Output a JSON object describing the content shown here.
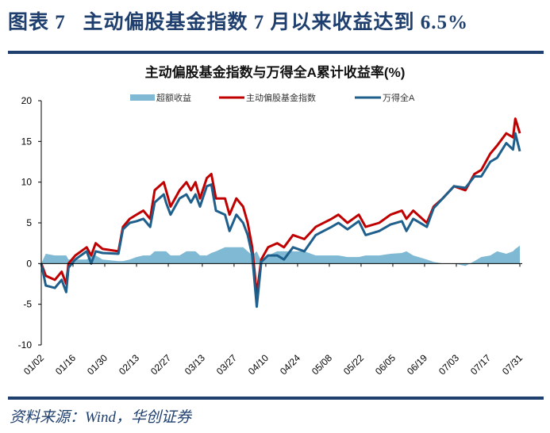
{
  "figure_title": "图表 7   主动偏股基金指数 7 月以来收益达到 6.5%",
  "source": "资料来源：Wind，华创证券",
  "colors": {
    "header": "#1f3f6e",
    "excess": "#7fb9d3",
    "fund": "#c00000",
    "wind_a": "#1f5f8b"
  },
  "chart_data": {
    "type": "line",
    "title": "主动偏股基金指数与万得全A累计收益率(%)",
    "ylim": [
      -10,
      20
    ],
    "yticks": [
      "-10",
      "-5",
      "0",
      "5",
      "10",
      "15",
      "20"
    ],
    "xtick_labels": [
      "01/02",
      "01/16",
      "01/30",
      "02/13",
      "02/27",
      "03/13",
      "03/27",
      "04/10",
      "04/24",
      "05/08",
      "05/22",
      "06/05",
      "06/19",
      "07/03",
      "07/17",
      "07/31"
    ],
    "grid": false,
    "legend": "top",
    "x": [
      "01/02",
      "01/04",
      "01/08",
      "01/11",
      "01/13",
      "01/14",
      "01/17",
      "01/22",
      "01/24",
      "01/26",
      "01/29",
      "02/05",
      "02/07",
      "02/10",
      "02/13",
      "02/16",
      "02/19",
      "02/21",
      "02/25",
      "02/26",
      "02/28",
      "03/03",
      "03/06",
      "03/08",
      "03/10",
      "03/12",
      "03/15",
      "03/17",
      "03/19",
      "03/23",
      "03/25",
      "03/28",
      "03/31",
      "04/02",
      "04/04",
      "04/06",
      "04/08",
      "04/11",
      "04/15",
      "04/18",
      "04/22",
      "04/27",
      "05/02",
      "05/09",
      "05/12",
      "05/16",
      "05/21",
      "05/24",
      "05/30",
      "06/04",
      "06/09",
      "06/11",
      "06/14",
      "06/20",
      "06/23",
      "06/27",
      "07/02",
      "07/07",
      "07/11",
      "07/14",
      "07/18",
      "07/21",
      "07/25",
      "07/28",
      "07/29",
      "07/31"
    ],
    "series": [
      {
        "name": "超额收益",
        "kind": "area",
        "values": [
          0,
          1.2,
          1,
          1,
          1,
          0.5,
          0.5,
          0.5,
          1,
          1,
          0.5,
          0.3,
          0.3,
          0.5,
          0.8,
          1,
          1,
          1.5,
          1.5,
          1.5,
          1,
          1,
          1.5,
          1.5,
          1.5,
          1,
          1,
          1.3,
          1.5,
          2,
          2,
          2,
          2,
          1.5,
          1,
          1.5,
          0.3,
          1,
          1.5,
          1.5,
          1.5,
          1.5,
          1,
          1,
          1,
          0.8,
          0.8,
          1,
          1,
          1.2,
          1.3,
          1.5,
          1,
          0.5,
          0.2,
          0,
          0,
          -0.3,
          0.3,
          0.8,
          1,
          1.5,
          1.2,
          1.5,
          1.8,
          2.2
        ]
      },
      {
        "name": "主动偏股基金指数",
        "kind": "line",
        "values": [
          0,
          -1.5,
          -2,
          -1,
          -2.5,
          0,
          1,
          2,
          1,
          2.5,
          1.8,
          1.5,
          4.5,
          5.5,
          6,
          6.5,
          5.5,
          9,
          10,
          9,
          7,
          9,
          10,
          9,
          10,
          8,
          10.5,
          11,
          8,
          8,
          6,
          8,
          7,
          5,
          2,
          -3.8,
          0.5,
          2,
          2.5,
          2,
          3.5,
          3,
          4.5,
          5.5,
          6,
          5,
          6,
          4.5,
          5,
          6,
          6.5,
          5.5,
          6.5,
          5,
          7,
          8,
          9.5,
          9,
          11,
          11.5,
          13.5,
          14.5,
          16,
          15.5,
          17.8,
          16
        ]
      },
      {
        "name": "万得全A",
        "kind": "line",
        "values": [
          0,
          -2.7,
          -3,
          -2,
          -3.5,
          -0.5,
          0.5,
          1.5,
          0,
          1.5,
          1.3,
          1.2,
          4.2,
          5,
          5.2,
          5.5,
          4.5,
          7.5,
          8.5,
          7.5,
          6,
          8,
          8.5,
          7.5,
          8.5,
          7,
          9.5,
          9.7,
          6.5,
          6,
          4,
          6,
          5,
          3.5,
          1,
          -5.3,
          0.2,
          1,
          1,
          0.5,
          2,
          1.5,
          3.5,
          4.5,
          5,
          4.2,
          5.2,
          3.5,
          4,
          4.8,
          5.2,
          4,
          5.5,
          4.5,
          6.8,
          8,
          9.5,
          9.3,
          10.7,
          10.7,
          12.5,
          13,
          14.8,
          14,
          16,
          13.8
        ]
      }
    ]
  }
}
